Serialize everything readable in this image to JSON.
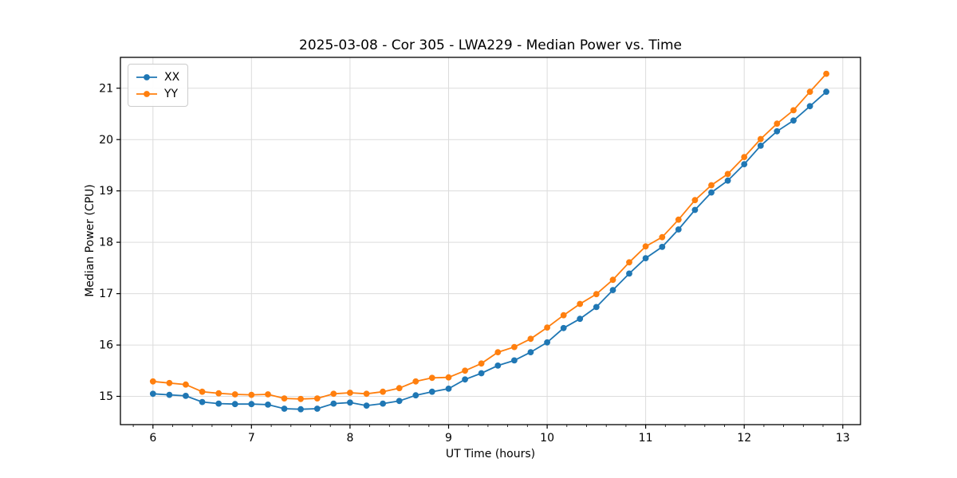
{
  "chart_data": {
    "type": "line",
    "title": "2025-03-08 - Cor 305 - LWA229 - Median Power vs. Time",
    "xlabel": "UT Time (hours)",
    "ylabel": "Median Power (CPU)",
    "xlim": [
      5.67,
      13.18
    ],
    "ylim": [
      14.45,
      21.6
    ],
    "xticks": {
      "values": [
        6,
        7,
        8,
        9,
        10,
        11,
        12,
        13
      ],
      "labels": [
        "6",
        "7",
        "8",
        "9",
        "10",
        "11",
        "12",
        "13"
      ]
    },
    "yticks": {
      "values": [
        15,
        16,
        17,
        18,
        19,
        20,
        21
      ],
      "labels": [
        "15",
        "16",
        "17",
        "18",
        "19",
        "20",
        "21"
      ]
    },
    "x_minor_step": 0.2,
    "grid": true,
    "grid_color": "#dcdcdc",
    "legend_position": "upper left",
    "x": [
      6.0,
      6.167,
      6.333,
      6.5,
      6.667,
      6.833,
      7.0,
      7.167,
      7.333,
      7.5,
      7.667,
      7.833,
      8.0,
      8.167,
      8.333,
      8.5,
      8.667,
      8.833,
      9.0,
      9.167,
      9.333,
      9.5,
      9.667,
      9.833,
      10.0,
      10.167,
      10.333,
      10.5,
      10.667,
      10.833,
      11.0,
      11.167,
      11.333,
      11.5,
      11.667,
      11.833,
      12.0,
      12.167,
      12.333,
      12.5,
      12.667,
      12.833
    ],
    "series": [
      {
        "name": "XX",
        "color": "#1f77b4",
        "values": [
          15.05,
          15.03,
          15.01,
          14.89,
          14.86,
          14.85,
          14.85,
          14.84,
          14.76,
          14.75,
          14.76,
          14.86,
          14.88,
          14.82,
          14.86,
          14.91,
          15.02,
          15.09,
          15.15,
          15.33,
          15.45,
          15.6,
          15.7,
          15.86,
          16.05,
          16.33,
          16.51,
          16.74,
          17.07,
          17.39,
          17.69,
          17.91,
          18.25,
          18.63,
          18.97,
          19.2,
          19.52,
          19.88,
          20.16,
          20.37,
          20.65,
          20.93
        ]
      },
      {
        "name": "YY",
        "color": "#ff7f0e",
        "values": [
          15.29,
          15.26,
          15.23,
          15.09,
          15.06,
          15.04,
          15.03,
          15.04,
          14.96,
          14.95,
          14.96,
          15.05,
          15.07,
          15.05,
          15.09,
          15.16,
          15.29,
          15.36,
          15.37,
          15.5,
          15.64,
          15.86,
          15.96,
          16.12,
          16.34,
          16.58,
          16.8,
          16.99,
          17.27,
          17.61,
          17.92,
          18.1,
          18.44,
          18.82,
          19.11,
          19.33,
          19.66,
          20.01,
          20.31,
          20.57,
          20.93,
          21.28
        ]
      }
    ]
  }
}
